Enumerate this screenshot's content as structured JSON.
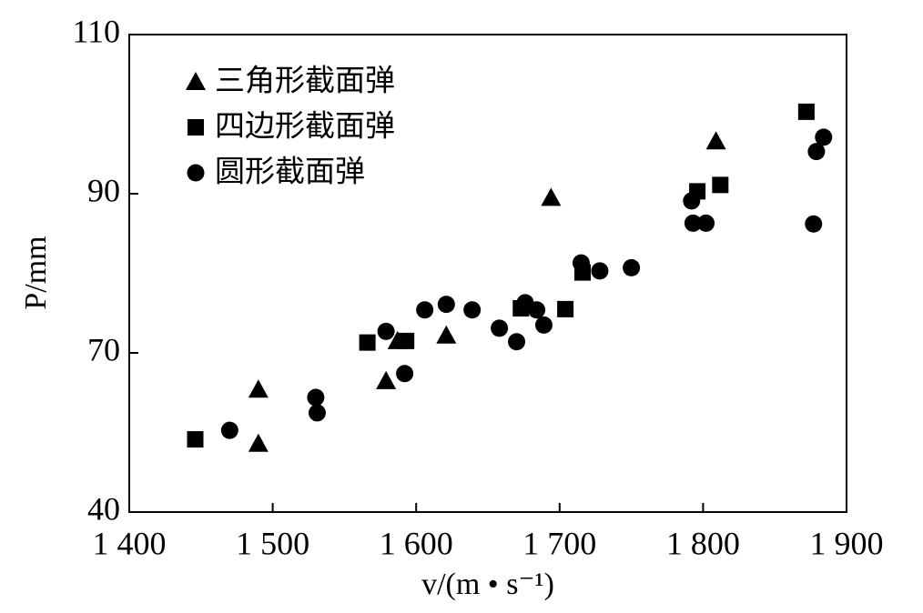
{
  "chart_data": {
    "type": "scatter",
    "x_label": "v/(m • s⁻¹)",
    "y_label": "P/mm",
    "xlim": [
      1400,
      1900
    ],
    "xticks": [
      {
        "value": 1400,
        "label": "1 400"
      },
      {
        "value": 1500,
        "label": "1 500"
      },
      {
        "value": 1600,
        "label": "1 600"
      },
      {
        "value": 1700,
        "label": "1 700"
      },
      {
        "value": 1800,
        "label": "1 800"
      },
      {
        "value": 1900,
        "label": "1 900"
      }
    ],
    "ylim": [
      40,
      110
    ],
    "yticks": [
      40,
      70,
      90,
      110
    ],
    "series": [
      {
        "name": "三角形截面弹",
        "color": "#000000",
        "marker": "triangle",
        "x": [
          1490,
          1490,
          1579,
          1587,
          1621,
          1694,
          1809
        ],
        "values": [
          63.1,
          52.9,
          64.7,
          71.5,
          72.2,
          89.5,
          96.6
        ]
      },
      {
        "name": "四边形截面弹",
        "color": "#000000",
        "marker": "square",
        "x": [
          1446,
          1566,
          1593,
          1673,
          1704,
          1716,
          1796,
          1812,
          1872
        ],
        "values": [
          53.7,
          71.3,
          71.5,
          75.6,
          75.5,
          80.1,
          90.3,
          91.1,
          100.3
        ]
      },
      {
        "name": "圆形截面弹",
        "color": "#000000",
        "marker": "circle",
        "x": [
          1470,
          1530,
          1531,
          1579,
          1592,
          1606,
          1621,
          1639,
          1658,
          1670,
          1676,
          1684,
          1689,
          1715,
          1728,
          1750,
          1792,
          1793,
          1802,
          1877,
          1879,
          1884
        ],
        "values": [
          55.4,
          61.6,
          58.7,
          72.7,
          66.1,
          75.4,
          76.1,
          75.4,
          73.1,
          71.4,
          76.3,
          75.4,
          73.5,
          81.3,
          80.3,
          80.7,
          89.1,
          86.3,
          86.3,
          86.2,
          95.3,
          97.1
        ]
      }
    ]
  }
}
